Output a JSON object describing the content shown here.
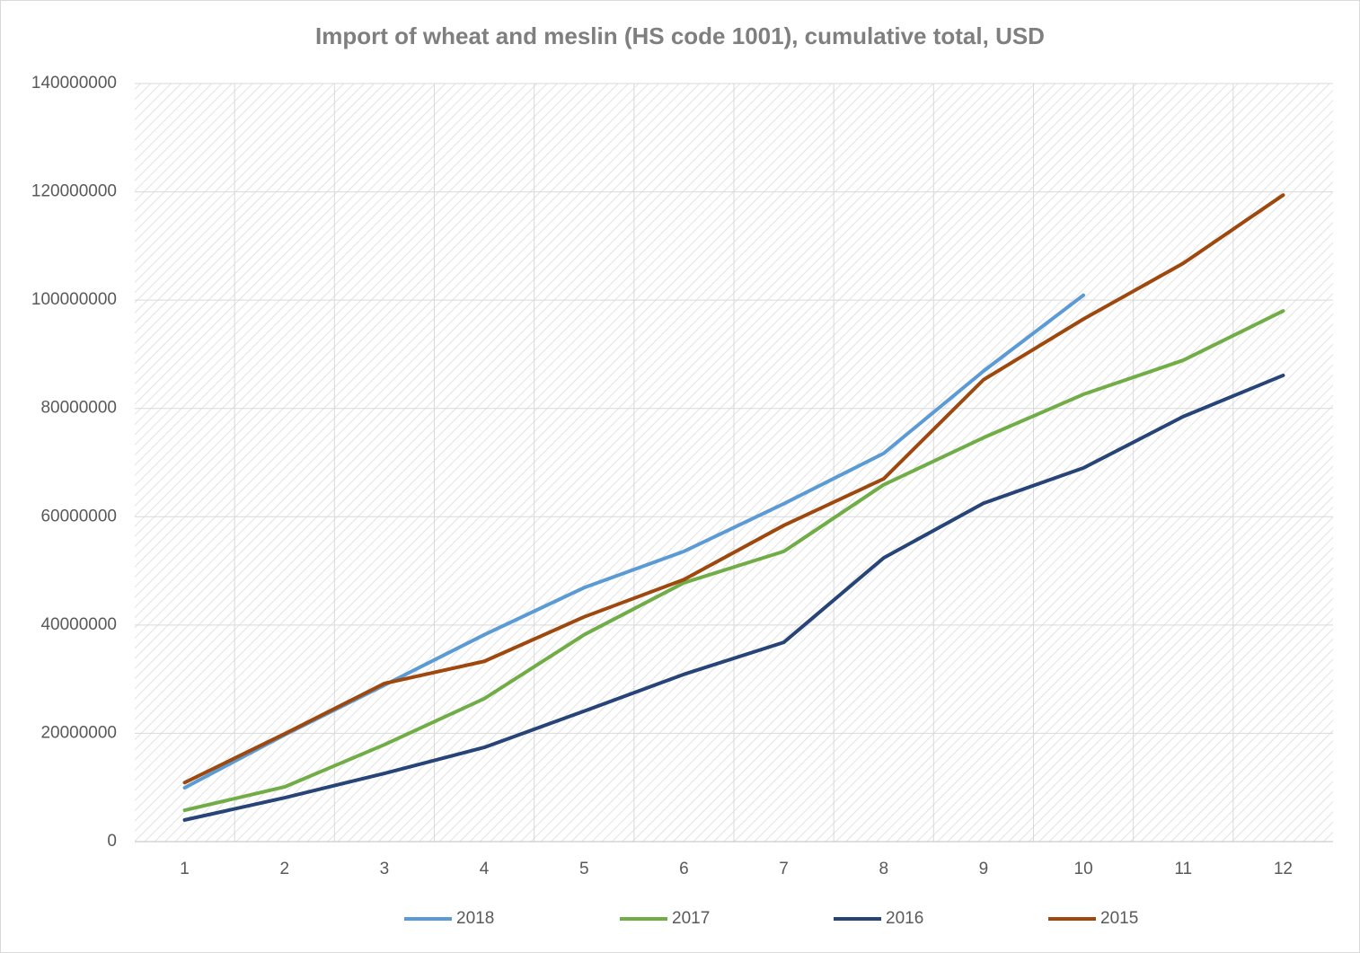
{
  "chart_data": {
    "type": "line",
    "title": "Import of wheat and meslin (HS code 1001), cumulative total, USD",
    "categories": [
      1,
      2,
      3,
      4,
      5,
      6,
      7,
      8,
      9,
      10,
      11,
      12
    ],
    "series": [
      {
        "name": "2018",
        "color": "#5b9bd5",
        "values": [
          9950000,
          19700000,
          28900000,
          38200000,
          46900000,
          53600000,
          62400000,
          71700000,
          86900000,
          100900000,
          null,
          null
        ]
      },
      {
        "name": "2017",
        "color": "#70ad47",
        "values": [
          5800000,
          10100000,
          17900000,
          26400000,
          38200000,
          47800000,
          53600000,
          65900000,
          74600000,
          82600000,
          88900000,
          98000000
        ]
      },
      {
        "name": "2016",
        "color": "#264478",
        "values": [
          4000000,
          8100000,
          12600000,
          17400000,
          24100000,
          30900000,
          36800000,
          52400000,
          62500000,
          69000000,
          78500000,
          86100000
        ]
      },
      {
        "name": "2015",
        "color": "#9e480e",
        "values": [
          10900000,
          19900000,
          29200000,
          33300000,
          41500000,
          48400000,
          58400000,
          67000000,
          85300000,
          96500000,
          106800000,
          119400000
        ]
      }
    ],
    "ylim": [
      0,
      140000000
    ],
    "yticks": [
      0,
      20000000,
      40000000,
      60000000,
      80000000,
      100000000,
      120000000,
      140000000
    ],
    "grid": true,
    "legend": "bottom"
  }
}
